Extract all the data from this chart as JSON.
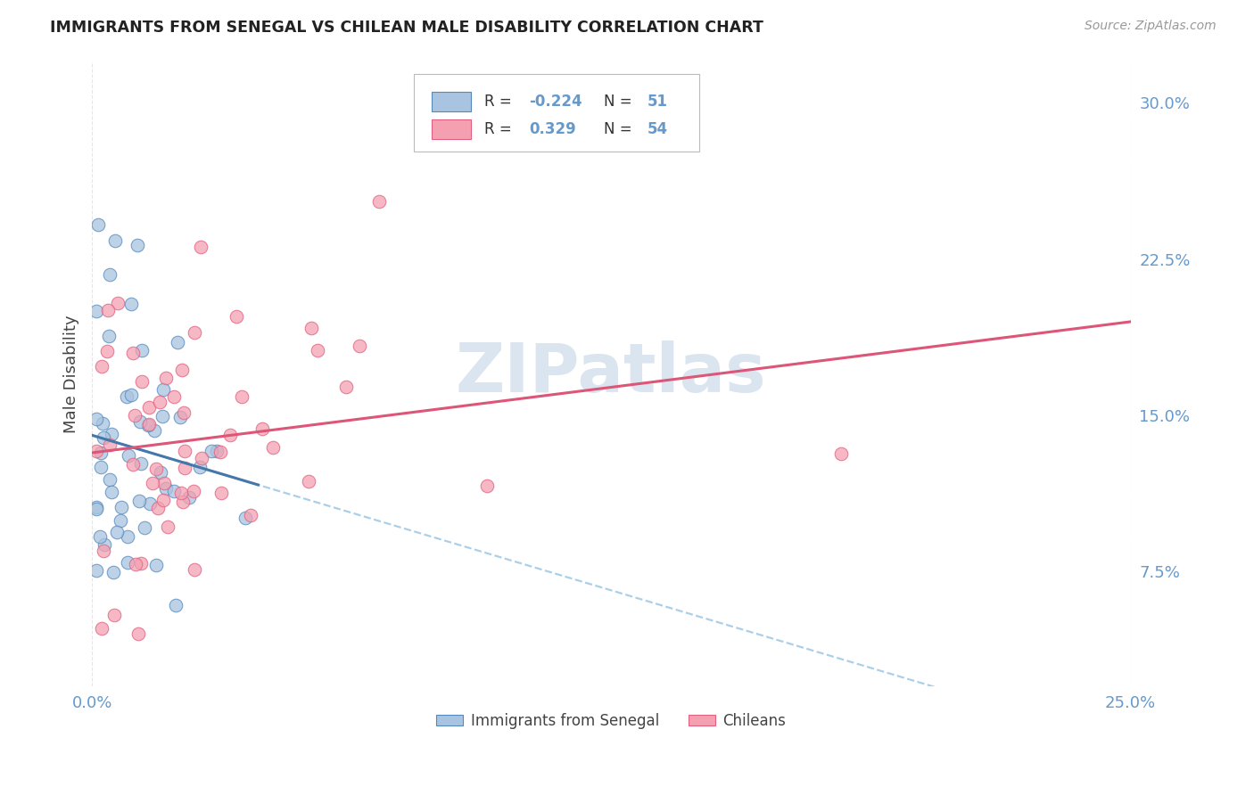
{
  "title": "IMMIGRANTS FROM SENEGAL VS CHILEAN MALE DISABILITY CORRELATION CHART",
  "source": "Source: ZipAtlas.com",
  "ylabel": "Male Disability",
  "ytick_labels": [
    "30.0%",
    "22.5%",
    "15.0%",
    "7.5%"
  ],
  "ytick_values": [
    0.3,
    0.225,
    0.15,
    0.075
  ],
  "xmin": 0.0,
  "xmax": 0.25,
  "ymin": 0.02,
  "ymax": 0.32,
  "color_senegal": "#a8c4e0",
  "color_chile": "#f4a0b0",
  "edge_senegal": "#5588bb",
  "edge_chile": "#e06080",
  "line_senegal": "#4477aa",
  "line_chile": "#dd5577",
  "dash_senegal": "#88bbdd",
  "watermark_color": "#c8d8e8",
  "grid_color": "#cccccc",
  "label_color": "#6699cc",
  "background_color": "#ffffff",
  "r_senegal": -0.224,
  "n_senegal": 51,
  "r_chile": 0.329,
  "n_chile": 54
}
